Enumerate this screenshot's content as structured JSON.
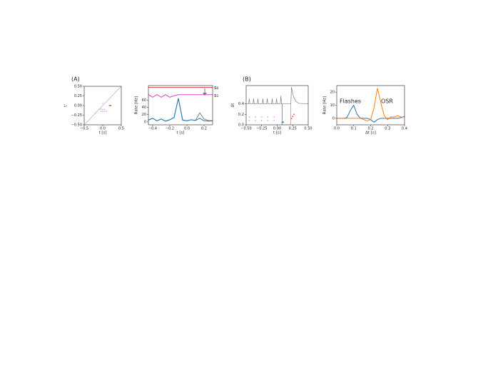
{
  "chart_data": [
    {
      "type": "scatter",
      "label": "(A)",
      "xlabel": "t [s]",
      "ylabel": "t'",
      "xlim": [
        -0.5,
        0.5
      ],
      "ylim": [
        -0.5,
        0.5
      ],
      "xticks": [
        {
          "value": -0.5,
          "label": "−0.5"
        },
        {
          "value": 0,
          "label": "0.0"
        },
        0.5
      ],
      "yticks": [
        {
          "value": 0.5,
          "label": "0.50"
        },
        {
          "value": 0.25,
          "label": "0.25"
        },
        {
          "value": 0,
          "label": "0.00"
        },
        {
          "value": -0.25,
          "label": "−0.25"
        },
        {
          "value": -0.5,
          "label": "−0.50"
        }
      ],
      "series": [
        {
          "mode": "lines",
          "color": "#b0b0b0",
          "x": [
            -0.5,
            0.5
          ],
          "values": [
            -0.5,
            0.5
          ]
        },
        {
          "mode": "markers",
          "color": "#c9b3e6",
          "x": [
            -0.1,
            -0.05,
            0,
            0.05,
            -0.05,
            0,
            0.05,
            0.1,
            -0.2,
            0.0
          ],
          "values": [
            -0.1,
            -0.1,
            -0.1,
            -0.1,
            -0.15,
            -0.15,
            -0.15,
            -0.15,
            -0.2,
            0.05
          ]
        },
        {
          "mode": "markers",
          "color": "#f0643c",
          "x": [
            0.18,
            0.2,
            0.22
          ],
          "values": [
            0,
            0,
            0
          ]
        }
      ]
    },
    {
      "type": "line",
      "xlabel": "t [s]",
      "ylabel": "Rate [Hz]",
      "xlim": [
        -0.45,
        0.3
      ],
      "ylim": [
        -8,
        100
      ],
      "xticks": [
        {
          "value": -0.4,
          "label": "−0.4"
        },
        {
          "value": -0.2,
          "label": "−0.2"
        },
        {
          "value": 0,
          "label": "0.0"
        },
        0.2
      ],
      "yticks": [
        0,
        20,
        40,
        60
      ],
      "x": [
        -0.45,
        -0.4,
        -0.35,
        -0.3,
        -0.25,
        -0.2,
        -0.15,
        -0.1,
        -0.05,
        0,
        0.05,
        0.1,
        0.15,
        0.2,
        0.25,
        0.3
      ],
      "series": [
        {
          "name": "s₀",
          "mode": "lines",
          "color": "#e8474a",
          "values": [
            95,
            95,
            95,
            95,
            95,
            95,
            95,
            95,
            95,
            95,
            95,
            95,
            95,
            95,
            95,
            95
          ]
        },
        {
          "name": "s₁",
          "mode": "lines",
          "color": "#e040d0",
          "values": [
            75,
            68,
            75,
            68,
            75,
            68,
            72,
            75,
            75,
            75,
            75,
            75,
            75,
            75,
            75,
            75
          ]
        },
        {
          "mode": "lines",
          "color": "#808080",
          "values": [
            5,
            10,
            3,
            8,
            2,
            6,
            12,
            65,
            5,
            3,
            6,
            4,
            25,
            8,
            4,
            3
          ]
        },
        {
          "mode": "lines",
          "color": "#1f77b4",
          "values": [
            5,
            10,
            3,
            8,
            2,
            6,
            12,
            65,
            5,
            3,
            6,
            4,
            10,
            3,
            2,
            3
          ]
        }
      ]
    },
    {
      "type": "scatter",
      "label": "(B)",
      "xlabel": "t [s]",
      "ylabel": "Δt",
      "xlim": [
        -0.5,
        0.5
      ],
      "ylim": [
        0,
        0.75
      ],
      "xticks": [
        {
          "value": -0.5,
          "label": "−0.50"
        },
        {
          "value": -0.25,
          "label": "−0.25"
        },
        {
          "value": 0,
          "label": "0.00"
        },
        0.25,
        {
          "value": 0.5,
          "label": "0.50"
        }
      ],
      "yticks": [
        {
          "value": 0,
          "label": "0.0"
        },
        0.2,
        0.4
      ],
      "series": [
        {
          "mode": "lines",
          "color": "#808080",
          "x": [
            -0.5,
            -0.46,
            -0.45,
            -0.44,
            -0.39,
            -0.38,
            -0.37,
            -0.32,
            -0.31,
            -0.3,
            -0.24,
            -0.23,
            -0.22,
            -0.17,
            -0.16,
            -0.15,
            -0.09,
            -0.08,
            -0.07,
            -0.02,
            -0.01,
            0.0,
            0.05,
            0.06,
            0.07,
            0.1,
            0.22,
            0.23,
            0.26,
            0.3,
            0.35,
            0.5
          ],
          "values": [
            0.4,
            0.4,
            0.5,
            0.4,
            0.4,
            0.5,
            0.4,
            0.4,
            0.5,
            0.4,
            0.4,
            0.5,
            0.4,
            0.4,
            0.5,
            0.4,
            0.4,
            0.5,
            0.4,
            0.4,
            0.5,
            0.4,
            0.4,
            0.55,
            0.4,
            0.4,
            0.4,
            0.72,
            0.55,
            0.45,
            0.41,
            0.4
          ]
        },
        {
          "mode": "markers",
          "color": "#c9b3e6",
          "x": [
            -0.45,
            -0.35,
            -0.25,
            -0.15,
            -0.05,
            -0.45,
            -0.35,
            -0.25,
            -0.15,
            -0.05
          ],
          "values": [
            0.15,
            0.15,
            0.15,
            0.15,
            0.15,
            0.08,
            0.08,
            0.08,
            0.08,
            0.08
          ]
        },
        {
          "mode": "lines",
          "color": "#1f77b4",
          "x": [
            0.08,
            0.08
          ],
          "values": [
            0,
            0.4
          ]
        },
        {
          "mode": "markers",
          "color": "#1f77b4",
          "x": [
            0.08,
            0.1
          ],
          "values": [
            0.05,
            0.05
          ]
        },
        {
          "mode": "lines",
          "color": "#ff7f0e",
          "x": [
            0.22,
            0.22
          ],
          "values": [
            0,
            0.4
          ]
        },
        {
          "mode": "markers",
          "color": "#e8474a",
          "x": [
            0.23,
            0.25,
            0.27
          ],
          "values": [
            0.12,
            0.16,
            0.2
          ]
        }
      ]
    },
    {
      "type": "line",
      "xlabel": "Δt [s]",
      "ylabel": "Rate [Hz]",
      "xlim": [
        0,
        0.4
      ],
      "ylim": [
        -5,
        25
      ],
      "xticks": [
        {
          "value": 0,
          "label": "0.0"
        },
        0.1,
        0.2,
        0.3,
        0.4
      ],
      "yticks": [
        0,
        10,
        20
      ],
      "x": [
        0,
        0.02,
        0.04,
        0.06,
        0.08,
        0.1,
        0.12,
        0.14,
        0.16,
        0.18,
        0.2,
        0.22,
        0.24,
        0.26,
        0.28,
        0.3,
        0.32,
        0.34,
        0.36,
        0.38,
        0.4
      ],
      "series": [
        {
          "name": "Flashes",
          "mode": "lines",
          "color": "#1f77b4",
          "values": [
            0,
            0,
            0,
            0.5,
            6,
            10,
            3,
            0,
            0,
            0,
            -1,
            -3,
            -1,
            0,
            0,
            0,
            0,
            0,
            0,
            0.5,
            1.5
          ]
        },
        {
          "name": "OSR",
          "mode": "lines",
          "color": "#ff7f0e",
          "values": [
            0,
            0,
            0,
            0,
            0,
            0,
            0,
            0,
            -1,
            -2,
            -1,
            8,
            23,
            12,
            2,
            -1,
            1,
            1,
            2,
            1,
            1
          ]
        }
      ]
    }
  ]
}
